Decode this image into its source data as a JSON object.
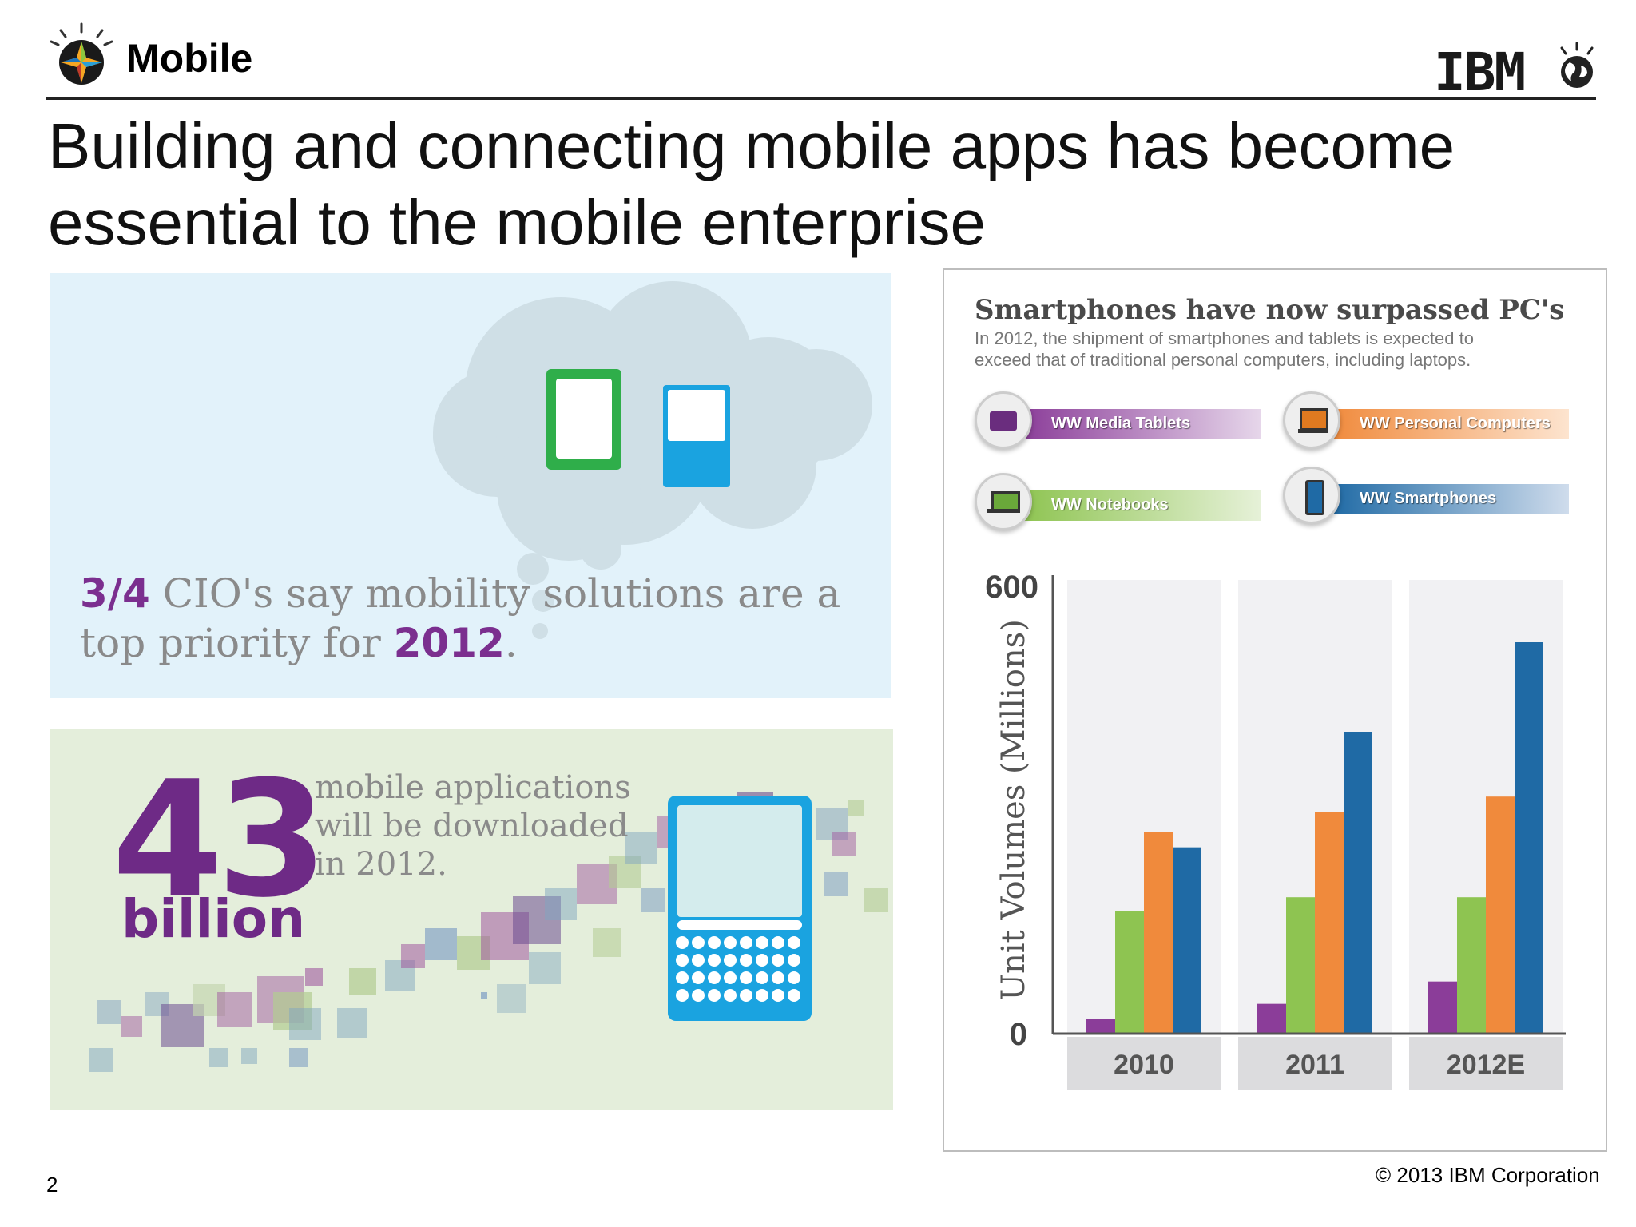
{
  "header": {
    "section_label": "Mobile",
    "brand": "IBM",
    "brand_icon": "smarter-planet-globe-icon",
    "section_icon": "smarter-planet-mobile-icon"
  },
  "slide": {
    "title_line1": "Building and connecting mobile apps has become",
    "title_line2": "essential to the mobile enterprise"
  },
  "cio_panel": {
    "fraction": "3/4",
    "text_part1": " CIO's say mobility solutions are a",
    "text_part2": "top priority for ",
    "year": "2012",
    "period": ".",
    "icons": [
      "tablet-icon",
      "phone-icon"
    ]
  },
  "apps_panel": {
    "number": "43",
    "unit": "billion",
    "line1": "mobile applications",
    "line2": "will be downloaded",
    "line3": "in 2012."
  },
  "chart_data": {
    "type": "bar",
    "title": "Smartphones have now surpassed PC's",
    "subtitle_line1": "In 2012, the shipment of smartphones and tablets is expected to",
    "subtitle_line2": "exceed that of traditional personal computers, including laptops.",
    "ylabel": "Unit Volumes (Millions)",
    "ylim": [
      0,
      600
    ],
    "ytick_labels": [
      "600",
      "0"
    ],
    "categories": [
      "2010",
      "2011",
      "2012E"
    ],
    "series": [
      {
        "name": "WW Media Tablets",
        "color": "#8b3d99",
        "values": [
          20,
          40,
          70
        ]
      },
      {
        "name": "WW Notebooks",
        "color": "#8ec451",
        "values": [
          165,
          183,
          183
        ]
      },
      {
        "name": "WW Personal Computers",
        "color": "#f08a3c",
        "values": [
          270,
          297,
          318
        ]
      },
      {
        "name": "WW Smartphones",
        "color": "#1f6aa5",
        "values": [
          250,
          405,
          525
        ]
      }
    ],
    "legend_placement": "top",
    "grid": false
  },
  "footer": {
    "page_number": "2",
    "copyright": "© 2013 IBM Corporation"
  }
}
